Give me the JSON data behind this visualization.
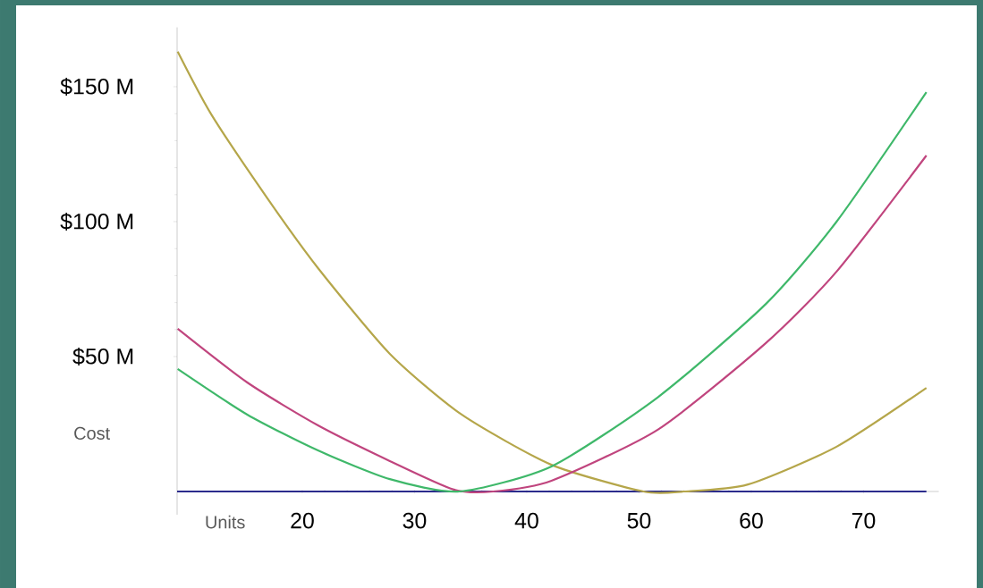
{
  "chart_data": {
    "type": "line",
    "xlabel": "Units",
    "ylabel": "Cost",
    "marker": "none",
    "line_style": "solid",
    "xlim": [
      8.85,
      76.7
    ],
    "ylim": [
      -8.6,
      172
    ],
    "xticks": [
      20,
      30,
      40,
      50,
      60,
      70
    ],
    "yticks": [
      {
        "value": 50,
        "label": "$50 M"
      },
      {
        "value": 100,
        "label": "$100 M"
      },
      {
        "value": 150,
        "label": "$150 M"
      }
    ],
    "series": [
      {
        "color": "#2b2b8c",
        "x": [
          8.85,
          75.6
        ],
        "values": [
          0,
          0
        ]
      },
      {
        "color": "#b5a64a",
        "x": [
          8.9,
          11.9,
          17.0,
          21.4,
          27.8,
          34.2,
          42.2,
          50.4,
          54.0,
          59.7,
          67.6,
          75.6
        ],
        "values": [
          163,
          139.7,
          108,
          82.8,
          51,
          28.5,
          9.9,
          0,
          0,
          2.6,
          16.6,
          38.4
        ]
      },
      {
        "color": "#c0457e",
        "x": [
          8.9,
          15.1,
          21.4,
          27.8,
          33.5,
          37.0,
          42.2,
          51.7,
          61.3,
          67.6,
          75.6
        ],
        "values": [
          60.3,
          40.4,
          24.5,
          11.3,
          0.7,
          0,
          4,
          23,
          55,
          81.5,
          124.5
        ]
      },
      {
        "color": "#3fb86a",
        "x": [
          8.9,
          15.1,
          21.4,
          27.8,
          34.0,
          42.2,
          51.7,
          61.3,
          67.6,
          75.6
        ],
        "values": [
          45.4,
          28.5,
          15.2,
          4.6,
          0,
          9.3,
          35,
          69.5,
          100,
          148
        ]
      }
    ]
  }
}
